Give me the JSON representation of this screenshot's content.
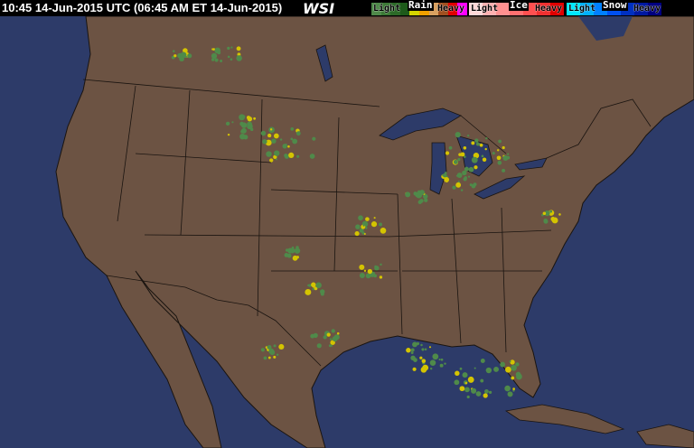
{
  "header": {
    "timestamp": "10:45 14-Jun-2015 UTC  (06:45 AM ET 14-Jun-2015)",
    "logo": "WSI"
  },
  "legend": {
    "rain": {
      "title": "Rain",
      "light": "Light",
      "heavy": "Heavy",
      "colors": [
        "#4f8a4a",
        "#3c7a36",
        "#2c6a28",
        "#1d5a1a",
        "#d4d400",
        "#f0a000",
        "#d8a060",
        "#a05020",
        "#e00000",
        "#ff00ff"
      ]
    },
    "ice": {
      "title": "Ice",
      "light": "Light",
      "heavy": "Heavy",
      "colors": [
        "#ffd8d8",
        "#ffb0b0",
        "#ff9090",
        "#ff7070",
        "#ff5050",
        "#f03030",
        "#e00000"
      ]
    },
    "snow": {
      "title": "Snow",
      "light": "Light",
      "heavy": "Heavy",
      "colors": [
        "#00e8ff",
        "#00b0ff",
        "#0080ff",
        "#0050f0",
        "#0030c0",
        "#0018a0",
        "#000080"
      ]
    }
  },
  "map": {
    "ocean_color": "#2d3b69",
    "land_color": "#6c5343",
    "border_color": "#1a1410",
    "radar_light": "#4f8a4a",
    "radar_heavy": "#d4c400"
  }
}
